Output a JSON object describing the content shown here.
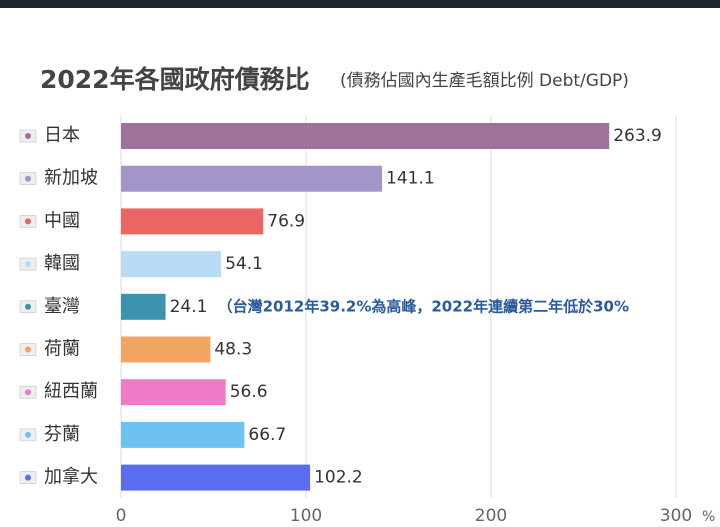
{
  "chart_data": {
    "type": "bar",
    "orientation": "horizontal",
    "title": "2022年各國政府債務比",
    "subtitle": "(債務佔國內生產毛額比例 Debt/GDP)",
    "categories": [
      "日本",
      "新加坡",
      "中國",
      "韓國",
      "臺灣",
      "荷蘭",
      "紐西蘭",
      "芬蘭",
      "加拿大"
    ],
    "values": [
      263.9,
      141.1,
      76.9,
      54.1,
      24.1,
      48.3,
      56.6,
      66.7,
      102.2
    ],
    "colors": [
      "#a0719a",
      "#a495c8",
      "#ea6563",
      "#b7dcf3",
      "#3d93ad",
      "#f2a561",
      "#ef7bc7",
      "#6ec2f1",
      "#5c6cf0"
    ],
    "annotations": [
      {
        "category_index": 4,
        "text": "（台灣2012年39.2%為高峰，2022年連續第二年低於30%"
      }
    ],
    "xlim": [
      0,
      300
    ],
    "xticks": [
      0,
      100,
      200,
      300
    ],
    "x_unit": "%",
    "grid": true
  }
}
